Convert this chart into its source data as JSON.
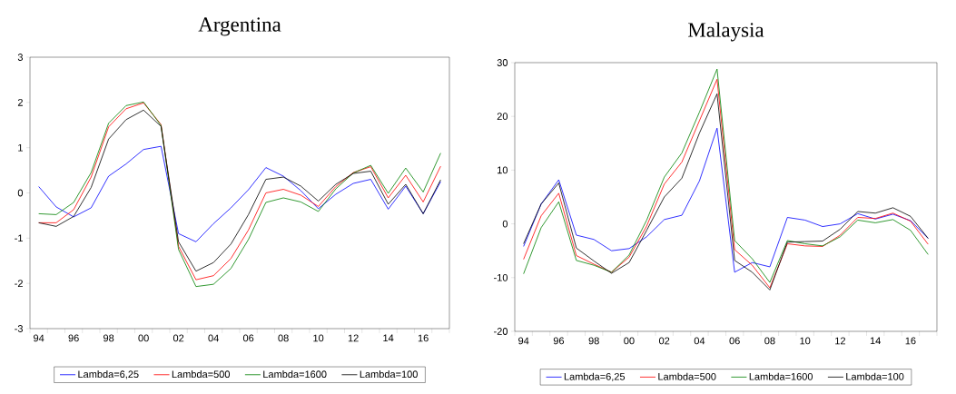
{
  "chart_data": [
    {
      "type": "line",
      "title": "Argentina",
      "categories": [
        "94",
        null,
        "96",
        null,
        "98",
        null,
        "00",
        null,
        "02",
        null,
        "04",
        null,
        "06",
        null,
        "08",
        null,
        "10",
        null,
        "12",
        null,
        "14",
        null,
        "16",
        null
      ],
      "ylim": [
        -3,
        3
      ],
      "yticks": [
        -3,
        -2,
        -1,
        0,
        1,
        2,
        3
      ],
      "grid": false,
      "legend": "bottom",
      "series": [
        {
          "name": "Lambda=6,25",
          "color": "#0000ff",
          "values": [
            0.14,
            -0.31,
            -0.53,
            -0.33,
            0.37,
            0.64,
            0.96,
            1.03,
            -0.9,
            -1.08,
            -0.68,
            -0.33,
            0.07,
            0.56,
            0.37,
            0.05,
            -0.35,
            -0.03,
            0.21,
            0.3,
            -0.36,
            0.15,
            -0.46,
            0.25
          ]
        },
        {
          "name": "Lambda=500",
          "color": "#ff0000",
          "values": [
            -0.66,
            -0.66,
            -0.37,
            0.35,
            1.46,
            1.86,
            1.99,
            1.51,
            -1.18,
            -1.92,
            -1.83,
            -1.45,
            -0.82,
            0.0,
            0.08,
            -0.05,
            -0.3,
            0.14,
            0.45,
            0.58,
            -0.11,
            0.39,
            -0.2,
            0.59
          ]
        },
        {
          "name": "Lambda=1600",
          "color": "#008000",
          "values": [
            -0.46,
            -0.48,
            -0.21,
            0.45,
            1.54,
            1.93,
            2.01,
            1.49,
            -1.25,
            -2.07,
            -2.02,
            -1.67,
            -1.03,
            -0.21,
            -0.11,
            -0.2,
            -0.41,
            0.09,
            0.44,
            0.61,
            -0.01,
            0.55,
            0.02,
            0.88
          ]
        },
        {
          "name": "Lambda=100",
          "color": "#000000",
          "values": [
            -0.66,
            -0.74,
            -0.52,
            0.12,
            1.19,
            1.62,
            1.83,
            1.47,
            -1.08,
            -1.73,
            -1.54,
            -1.13,
            -0.48,
            0.3,
            0.35,
            0.15,
            -0.18,
            0.19,
            0.43,
            0.48,
            -0.25,
            0.19,
            -0.46,
            0.29
          ]
        }
      ]
    },
    {
      "type": "line",
      "title": "Malaysia",
      "categories": [
        "94",
        null,
        "96",
        null,
        "98",
        null,
        "00",
        null,
        "02",
        null,
        "04",
        null,
        "06",
        null,
        "08",
        null,
        "10",
        null,
        "12",
        null,
        "14",
        null,
        "16",
        null
      ],
      "ylim": [
        -20,
        30
      ],
      "yticks": [
        -20,
        -10,
        0,
        10,
        20,
        30
      ],
      "grid": false,
      "legend": "bottom",
      "series": [
        {
          "name": "Lambda=6,25",
          "color": "#0000ff",
          "values": [
            -4.2,
            3.7,
            8.2,
            -2.1,
            -2.9,
            -5.0,
            -4.6,
            -2.4,
            0.8,
            1.6,
            8.0,
            17.8,
            -9.0,
            -7.2,
            -8.0,
            1.2,
            0.7,
            -0.5,
            0.0,
            1.9,
            0.9,
            1.8,
            0.6,
            -2.7
          ]
        },
        {
          "name": "Lambda=500",
          "color": "#ff0000",
          "values": [
            -6.6,
            1.5,
            5.7,
            -5.9,
            -7.5,
            -9.0,
            -6.2,
            -0.4,
            7.4,
            11.5,
            19.2,
            26.9,
            -4.8,
            -7.7,
            -11.9,
            -3.7,
            -4.1,
            -4.2,
            -2.1,
            1.2,
            1.0,
            2.0,
            0.5,
            -3.8
          ]
        },
        {
          "name": "Lambda=1600",
          "color": "#008000",
          "values": [
            -9.3,
            -0.7,
            4.1,
            -6.8,
            -7.7,
            -9.0,
            -5.8,
            0.7,
            8.7,
            13.2,
            20.8,
            28.8,
            -3.1,
            -6.5,
            -10.9,
            -3.1,
            -3.7,
            -4.1,
            -2.4,
            0.7,
            0.2,
            0.8,
            -1.2,
            -5.7
          ]
        },
        {
          "name": "Lambda=100",
          "color": "#000000",
          "values": [
            -3.7,
            3.7,
            7.6,
            -4.5,
            -6.9,
            -9.2,
            -7.2,
            -1.2,
            5.0,
            8.5,
            16.9,
            24.2,
            -6.8,
            -9.0,
            -12.3,
            -3.4,
            -3.3,
            -3.2,
            -1.0,
            2.3,
            2.0,
            3.0,
            1.4,
            -2.7
          ]
        }
      ]
    }
  ]
}
